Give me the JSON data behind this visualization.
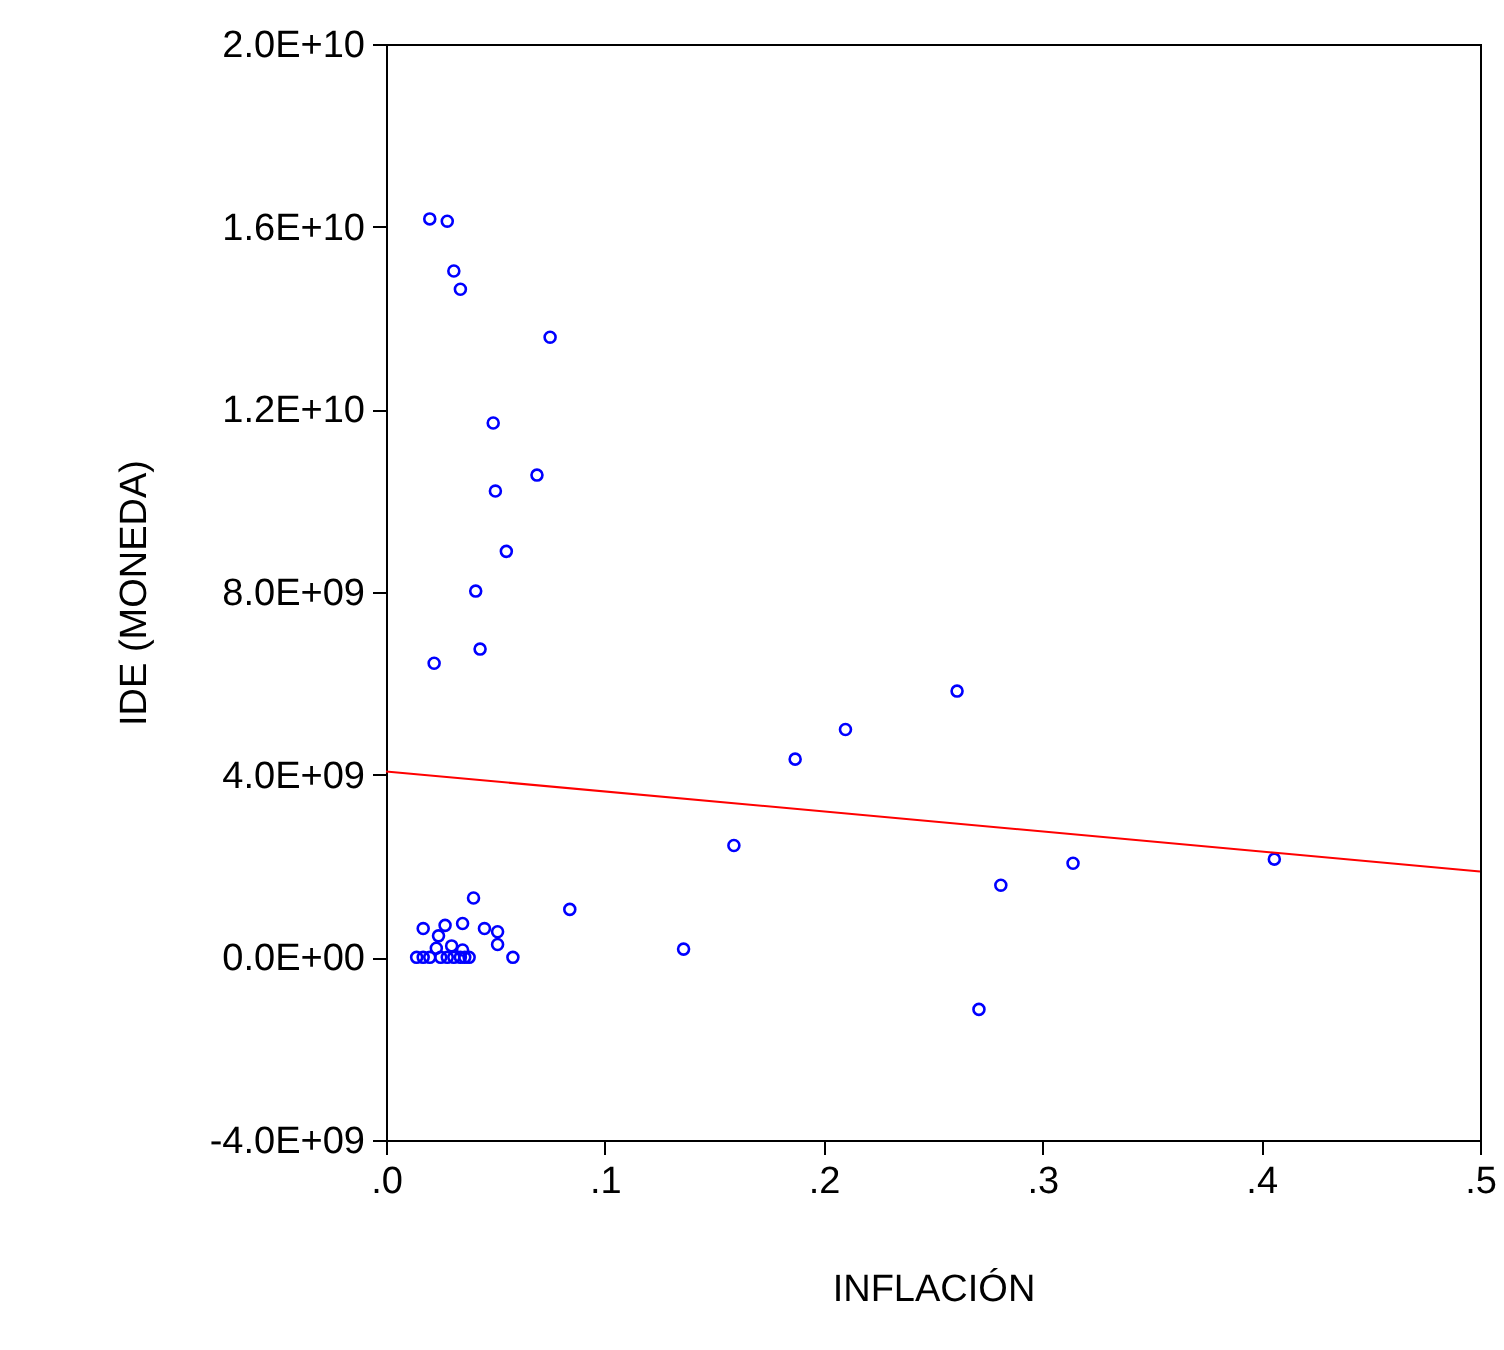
{
  "chart_data": {
    "type": "scatter",
    "xlabel": "INFLACIÓN",
    "ylabel": "IDE    (MONEDA)",
    "grid": false,
    "xlim": [
      0,
      0.5
    ],
    "xticks": [
      {
        "value": 0,
        "label": ".0"
      },
      {
        "value": 0.1,
        "label": ".1"
      },
      {
        "value": 0.2,
        "label": ".2"
      },
      {
        "value": 0.3,
        "label": ".3"
      },
      {
        "value": 0.4,
        "label": ".4"
      },
      {
        "value": 0.5,
        "label": ".5"
      }
    ],
    "ylim": [
      -4000000000.0,
      20000000000.0
    ],
    "yticks": [
      {
        "value": -4000000000.0,
        "label": "-4.0E+09"
      },
      {
        "value": 0,
        "label": "0.0E+00"
      },
      {
        "value": 4000000000.0,
        "label": "4.0E+09"
      },
      {
        "value": 8000000000.0,
        "label": "8.0E+09"
      },
      {
        "value": 12000000000.0,
        "label": "1.2E+10"
      },
      {
        "value": 16000000000.0,
        "label": "1.6E+10"
      },
      {
        "value": 20000000000.0,
        "label": "2.0E+10"
      }
    ],
    "series": [
      {
        "marker": "circle",
        "color": "#0000ff",
        "x": [
          0.02,
          0.028,
          0.031,
          0.034,
          0.075,
          0.049,
          0.05,
          0.069,
          0.055,
          0.041,
          0.043,
          0.022,
          0.187,
          0.21,
          0.261,
          0.159,
          0.281,
          0.314,
          0.406,
          0.136,
          0.271,
          0.084,
          0.04,
          0.017,
          0.027,
          0.024,
          0.035,
          0.045,
          0.051,
          0.051,
          0.058,
          0.03,
          0.035,
          0.023,
          0.014,
          0.017,
          0.02,
          0.025,
          0.028,
          0.031,
          0.034,
          0.036,
          0.038
        ],
        "values": [
          16170000000.0,
          16120000000.0,
          15030000000.0,
          14630000000.0,
          13580000000.0,
          11700000000.0,
          10210000000.0,
          10560000000.0,
          8890000000.0,
          8020000000.0,
          6750000000.0,
          6440000000.0,
          4340000000.0,
          4990000000.0,
          5830000000.0,
          2450000000.0,
          1580000000.0,
          2060000000.0,
          2150000000.0,
          180000000.0,
          -1140000000.0,
          1050000000.0,
          1300000000.0,
          630000000.0,
          700000000.0,
          470000000.0,
          740000000.0,
          630000000.0,
          560000000.0,
          280000000.0,
          0,
          250000000.0,
          160000000.0,
          200000000.0,
          0,
          0,
          0,
          0,
          0,
          0,
          0,
          0,
          0
        ]
      },
      {
        "type": "line",
        "color": "#ff0000",
        "x": [
          0,
          0.5
        ],
        "values": [
          4070000000.0,
          1880000000.0
        ]
      }
    ]
  }
}
